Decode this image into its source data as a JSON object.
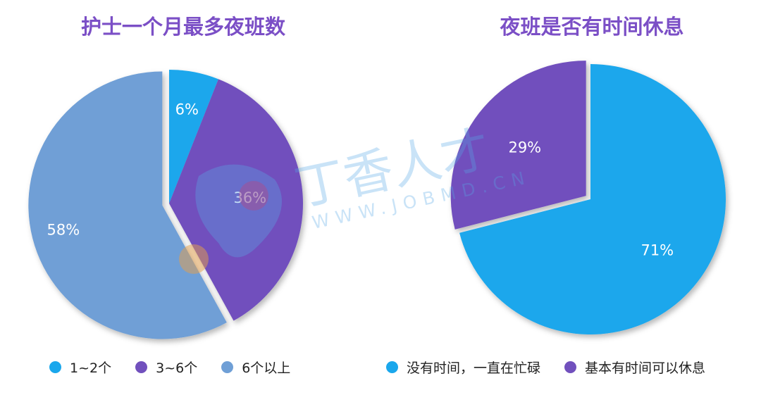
{
  "colors": {
    "cyan": "#1aa7ec",
    "purple": "#7150bd",
    "steel": "#6f9fd6",
    "title": "#7b4fc6"
  },
  "watermark": {
    "brand": "丁香人才",
    "url": "WWW.JOBMD.CN"
  },
  "chart_data": [
    {
      "type": "pie",
      "title": "护士一个月最多夜班数",
      "slices": [
        {
          "label": "1~2个",
          "value": 6,
          "display": "6%",
          "color": "#1aa7ec"
        },
        {
          "label": "3~6个",
          "value": 36,
          "display": "36%",
          "color": "#7150bd"
        },
        {
          "label": "6个以上",
          "value": 58,
          "display": "58%",
          "color": "#6f9fd6"
        }
      ],
      "legend_position": "bottom",
      "exploded": "6个以上"
    },
    {
      "type": "pie",
      "title": "夜班是否有时间休息",
      "slices": [
        {
          "label": "没有时间，一直在忙碌",
          "value": 71,
          "display": "71%",
          "color": "#1aa7ec"
        },
        {
          "label": "基本有时间可以休息",
          "value": 29,
          "display": "29%",
          "color": "#7150bd"
        }
      ],
      "legend_position": "bottom",
      "exploded": "基本有时间可以休息"
    }
  ]
}
